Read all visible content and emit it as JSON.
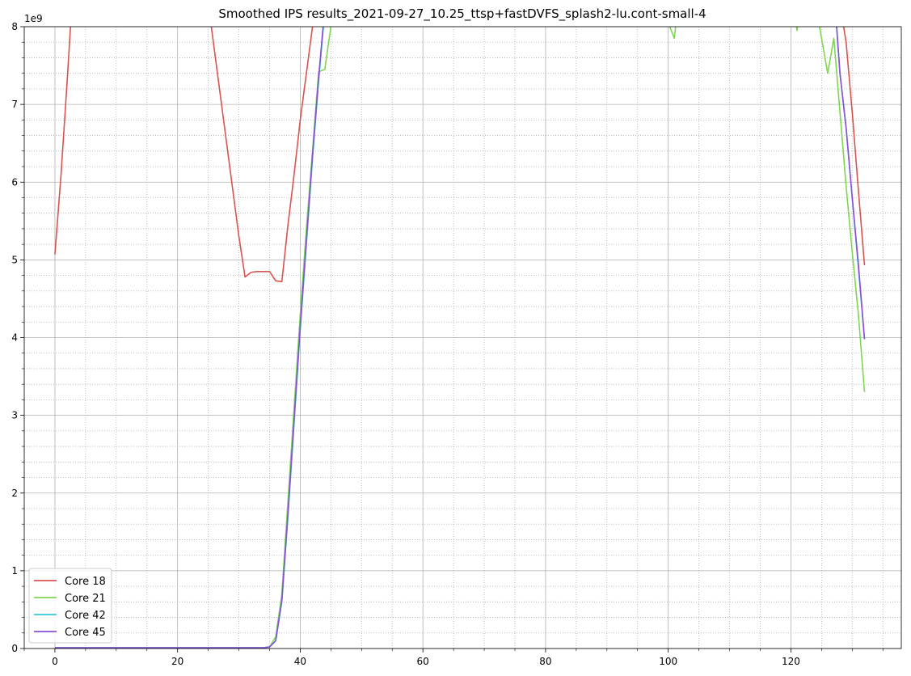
{
  "chart_data": {
    "type": "line",
    "title": "Smoothed IPS results_2021-09-27_10.25_ttsp+fastDVFS_splash2-lu.cont-small-4",
    "xlabel": "",
    "ylabel": "",
    "y_offset_label": "1e9",
    "xlim": [
      -5,
      138
    ],
    "ylim": [
      0,
      8
    ],
    "x_ticks": [
      0,
      20,
      40,
      60,
      80,
      100,
      120
    ],
    "x_tick_labels": [
      "0",
      "20",
      "40",
      "60",
      "80",
      "100",
      "120"
    ],
    "y_ticks": [
      0,
      1,
      2,
      3,
      4,
      5,
      6,
      7,
      8
    ],
    "y_tick_labels": [
      "0",
      "1",
      "2",
      "3",
      "4",
      "5",
      "6",
      "7",
      "8"
    ],
    "grid": true,
    "minor_grid": true,
    "legend_position": "lower-left",
    "series": [
      {
        "name": "Core 18",
        "color": "#d9534f",
        "x": [
          0,
          1,
          2,
          3,
          25,
          26,
          27,
          28,
          29,
          30,
          31,
          32,
          33,
          34,
          35,
          36,
          37,
          38,
          39,
          40,
          41,
          42,
          43,
          128,
          129,
          130,
          131,
          132
        ],
        "y": [
          5.07,
          6.1,
          7.3,
          8.6,
          8.3,
          7.7,
          7.1,
          6.5,
          5.9,
          5.3,
          4.78,
          4.84,
          4.85,
          4.85,
          4.85,
          4.73,
          4.72,
          5.45,
          6.1,
          6.8,
          7.4,
          8.0,
          8.6,
          8.3,
          7.8,
          6.9,
          5.9,
          4.93
        ]
      },
      {
        "name": "Core 21",
        "color": "#7fd650",
        "x": [
          0,
          10,
          20,
          30,
          34,
          35,
          36,
          37,
          38,
          39,
          40,
          41,
          42,
          43,
          44,
          45,
          46,
          100,
          101,
          102,
          120,
          121,
          122,
          124,
          125,
          126,
          127,
          128,
          129,
          130,
          131,
          132
        ],
        "y": [
          0.01,
          0.01,
          0.01,
          0.01,
          0.01,
          0.02,
          0.15,
          0.7,
          1.9,
          3.1,
          4.3,
          5.4,
          6.4,
          7.42,
          7.45,
          8.0,
          8.6,
          8.05,
          7.85,
          8.6,
          8.5,
          7.95,
          8.5,
          8.3,
          7.85,
          7.4,
          7.85,
          6.9,
          5.95,
          5.1,
          4.3,
          3.3
        ]
      },
      {
        "name": "Core 42",
        "color": "#33c8e0",
        "x": [
          0,
          10,
          20,
          30,
          34,
          35,
          36,
          37,
          38,
          39,
          40,
          41,
          42,
          43,
          44,
          45,
          127,
          128,
          129,
          130,
          131,
          132
        ],
        "y": [
          0.01,
          0.01,
          0.01,
          0.01,
          0.01,
          0.02,
          0.1,
          0.6,
          1.7,
          2.9,
          4.1,
          5.2,
          6.3,
          7.3,
          8.2,
          8.6,
          8.5,
          7.4,
          6.7,
          5.8,
          4.9,
          3.98
        ]
      },
      {
        "name": "Core 45",
        "color": "#8a4fd8",
        "x": [
          0,
          10,
          20,
          30,
          34,
          35,
          36,
          37,
          38,
          39,
          40,
          41,
          42,
          43,
          44,
          45,
          127,
          128,
          129,
          130,
          131,
          132
        ],
        "y": [
          0.01,
          0.01,
          0.01,
          0.01,
          0.01,
          0.02,
          0.1,
          0.62,
          1.75,
          2.95,
          4.15,
          5.25,
          6.35,
          7.35,
          8.25,
          8.6,
          8.5,
          7.4,
          6.7,
          5.8,
          4.95,
          3.98
        ]
      }
    ]
  }
}
